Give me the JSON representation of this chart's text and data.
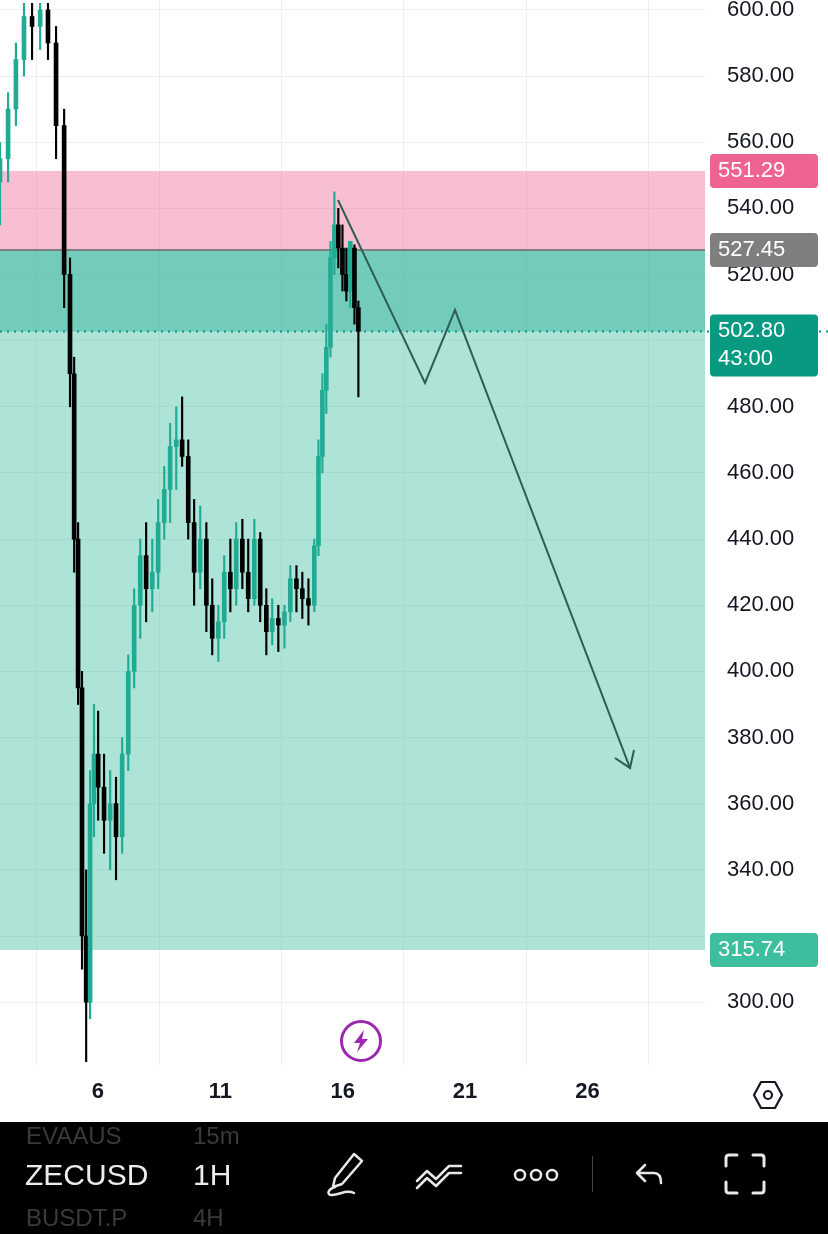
{
  "chart_data": {
    "type": "candlestick",
    "x": [
      2,
      2.33,
      2.65,
      2.98,
      3.31,
      3.64,
      3.96,
      4.29,
      4.62,
      4.86,
      5.03,
      5.19,
      5.35,
      5.52,
      5.68,
      5.84,
      6.01,
      6.25,
      6.5,
      6.74,
      6.99,
      7.24,
      7.48,
      7.73,
      7.97,
      8.22,
      8.46,
      8.71,
      8.95,
      9.2,
      9.44,
      9.69,
      9.93,
      10.18,
      10.43,
      10.67,
      10.92,
      11.16,
      11.41,
      11.65,
      11.9,
      12.14,
      12.39,
      12.63,
      12.88,
      13.12,
      13.37,
      13.62,
      13.86,
      14.11,
      14.35,
      14.6,
      14.84,
      15.01,
      15.17,
      15.33,
      15.5,
      15.66,
      15.82,
      15.99,
      16.15,
      16.31,
      16.48,
      16.64
    ],
    "ohlc": [
      [
        548,
        560,
        535,
        555
      ],
      [
        555,
        575,
        548,
        570
      ],
      [
        570,
        590,
        565,
        585
      ],
      [
        585,
        602,
        580,
        598
      ],
      [
        598,
        602,
        585,
        595
      ],
      [
        595,
        602,
        588,
        600
      ],
      [
        600,
        602,
        585,
        590
      ],
      [
        590,
        595,
        555,
        565
      ],
      [
        565,
        570,
        510,
        520
      ],
      [
        520,
        525,
        480,
        490
      ],
      [
        490,
        495,
        430,
        440
      ],
      [
        440,
        445,
        390,
        395
      ],
      [
        395,
        400,
        310,
        320
      ],
      [
        320,
        340,
        282,
        300
      ],
      [
        300,
        370,
        295,
        360
      ],
      [
        360,
        390,
        350,
        375
      ],
      [
        375,
        388,
        355,
        365
      ],
      [
        365,
        375,
        345,
        355
      ],
      [
        355,
        370,
        340,
        360
      ],
      [
        360,
        368,
        337,
        350
      ],
      [
        350,
        380,
        345,
        375
      ],
      [
        375,
        405,
        370,
        400
      ],
      [
        400,
        425,
        395,
        420
      ],
      [
        420,
        440,
        410,
        435
      ],
      [
        435,
        445,
        415,
        425
      ],
      [
        425,
        440,
        418,
        430
      ],
      [
        430,
        452,
        425,
        445
      ],
      [
        445,
        462,
        440,
        455
      ],
      [
        455,
        475,
        445,
        468
      ],
      [
        468,
        480,
        455,
        470
      ],
      [
        470,
        483,
        462,
        465
      ],
      [
        465,
        470,
        440,
        445
      ],
      [
        445,
        452,
        420,
        430
      ],
      [
        430,
        450,
        425,
        440
      ],
      [
        440,
        445,
        412,
        420
      ],
      [
        420,
        428,
        405,
        410
      ],
      [
        410,
        420,
        403,
        415
      ],
      [
        415,
        435,
        410,
        430
      ],
      [
        430,
        440,
        418,
        425
      ],
      [
        425,
        445,
        420,
        440
      ],
      [
        440,
        446,
        425,
        430
      ],
      [
        430,
        440,
        418,
        422
      ],
      [
        422,
        446,
        420,
        440
      ],
      [
        440,
        442,
        415,
        420
      ],
      [
        420,
        425,
        405,
        412
      ],
      [
        412,
        422,
        408,
        416
      ],
      [
        416,
        420,
        406,
        414
      ],
      [
        414,
        420,
        407,
        418
      ],
      [
        418,
        432,
        415,
        428
      ],
      [
        428,
        432,
        418,
        425
      ],
      [
        425,
        430,
        416,
        422
      ],
      [
        422,
        428,
        414,
        420
      ],
      [
        420,
        440,
        418,
        438
      ],
      [
        438,
        470,
        435,
        465
      ],
      [
        465,
        490,
        460,
        485
      ],
      [
        485,
        505,
        478,
        498
      ],
      [
        498,
        530,
        495,
        525
      ],
      [
        525,
        545,
        520,
        535
      ],
      [
        535,
        540,
        522,
        528
      ],
      [
        528,
        535,
        515,
        520
      ],
      [
        520,
        528,
        512,
        515
      ],
      [
        515,
        530,
        510,
        530
      ],
      [
        528,
        529,
        505,
        510
      ],
      [
        510,
        512,
        483,
        502.8
      ]
    ],
    "colors": [
      "#22ab94",
      "#22ab94",
      "#22ab94",
      "#22ab94",
      "#000000",
      "#22ab94",
      "#000000",
      "#000000",
      "#000000",
      "#000000",
      "#000000",
      "#000000",
      "#000000",
      "#000000",
      "#22ab94",
      "#22ab94",
      "#000000",
      "#000000",
      "#22ab94",
      "#000000",
      "#22ab94",
      "#22ab94",
      "#22ab94",
      "#22ab94",
      "#000000",
      "#22ab94",
      "#22ab94",
      "#22ab94",
      "#22ab94",
      "#22ab94",
      "#000000",
      "#000000",
      "#000000",
      "#22ab94",
      "#000000",
      "#000000",
      "#22ab94",
      "#22ab94",
      "#000000",
      "#22ab94",
      "#000000",
      "#000000",
      "#22ab94",
      "#000000",
      "#000000",
      "#22ab94",
      "#000000",
      "#22ab94",
      "#22ab94",
      "#000000",
      "#000000",
      "#000000",
      "#22ab94",
      "#22ab94",
      "#22ab94",
      "#22ab94",
      "#22ab94",
      "#22ab94",
      "#000000",
      "#000000",
      "#000000",
      "#22ab94",
      "#000000",
      "#000000"
    ],
    "xlim": [
      2,
      30.8
    ],
    "xticks": [
      6,
      11,
      16,
      21,
      26
    ],
    "ylim": [
      281,
      603
    ],
    "yticks": [
      {
        "value": 300,
        "label": "300.00"
      },
      {
        "value": 320,
        "label": null
      },
      {
        "value": 340,
        "label": "340.00"
      },
      {
        "value": 360,
        "label": "360.00"
      },
      {
        "value": 380,
        "label": "380.00"
      },
      {
        "value": 400,
        "label": "400.00"
      },
      {
        "value": 420,
        "label": "420.00"
      },
      {
        "value": 440,
        "label": "440.00"
      },
      {
        "value": 460,
        "label": "460.00"
      },
      {
        "value": 480,
        "label": "480.00"
      },
      {
        "value": 500,
        "label": null
      },
      {
        "value": 520,
        "label": "520.00"
      },
      {
        "value": 540,
        "label": "540.00"
      },
      {
        "value": 560,
        "label": "560.00"
      },
      {
        "value": 580,
        "label": "580.00"
      },
      {
        "value": 600,
        "label": "600.00"
      }
    ],
    "grid": true,
    "legend": false,
    "bands": [
      {
        "axis": "y",
        "from": 527.45,
        "to": 551.29,
        "label": "551.29",
        "color": "#ef6391"
      },
      {
        "axis": "y",
        "from": 527.45,
        "to": 315.74,
        "label": "315.74",
        "color": "#3dbf9f"
      },
      {
        "axis": "y",
        "from": 502.8,
        "to": 527.45,
        "color": "#22ab94"
      }
    ],
    "ref_lines": [
      {
        "axis": "y",
        "value": 527.45,
        "label": "527.45",
        "color": "#7f7f7f",
        "line_style": "solid"
      },
      {
        "axis": "y",
        "value": 502.8,
        "label": "502.80",
        "color": "#089981",
        "line_style": "dotted"
      }
    ],
    "annotations": [
      {
        "text": "43:00",
        "y": 502.8
      },
      "EVAAUS",
      "15m",
      "ZECUSD",
      "1H",
      "BUSDT.P",
      "4H"
    ]
  }
}
